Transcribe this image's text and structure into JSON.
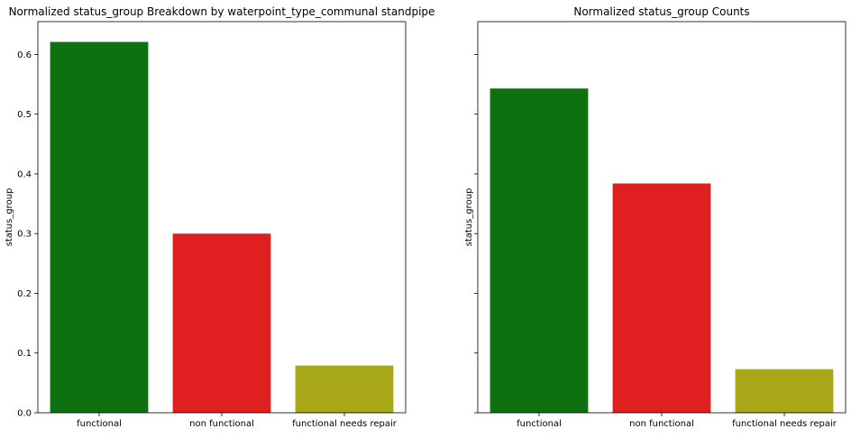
{
  "chart_data": [
    {
      "type": "bar",
      "title": "Normalized status_group Breakdown by waterpoint_type_communal standpipe",
      "xlabel": "",
      "ylabel": "status_group",
      "categories": [
        "functional",
        "non functional",
        "functional needs repair"
      ],
      "values": [
        0.621,
        0.3,
        0.079
      ],
      "colors": [
        "#0f7010",
        "#e02020",
        "#a8a818"
      ],
      "ylim": [
        0,
        0.655
      ],
      "yticks": [
        0.0,
        0.1,
        0.2,
        0.3,
        0.4,
        0.5,
        0.6
      ],
      "ytick_labels": [
        "0.0",
        "0.1",
        "0.2",
        "0.3",
        "0.4",
        "0.5",
        "0.6"
      ],
      "grid": false,
      "legend": "none"
    },
    {
      "type": "bar",
      "title": "Normalized status_group Counts",
      "xlabel": "",
      "ylabel": "status_group",
      "categories": [
        "functional",
        "non functional",
        "functional needs repair"
      ],
      "values": [
        0.543,
        0.384,
        0.073
      ],
      "colors": [
        "#0f7010",
        "#e02020",
        "#a8a818"
      ],
      "ylim": [
        0,
        0.655
      ],
      "yticks": [
        0.0,
        0.1,
        0.2,
        0.3,
        0.4,
        0.5,
        0.6
      ],
      "ytick_labels": [],
      "grid": false,
      "legend": "none"
    }
  ]
}
